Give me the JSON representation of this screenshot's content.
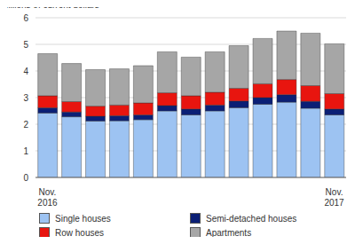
{
  "chart_data": {
    "type": "bar",
    "stacked": true,
    "grid": true,
    "legend": "bottom",
    "y_label": "billions of current dollars",
    "categories": [
      "Nov. 2016",
      null,
      null,
      null,
      null,
      null,
      null,
      null,
      null,
      null,
      null,
      null,
      "Nov. 2017"
    ],
    "ylim": [
      0,
      6
    ],
    "yticks": [
      0,
      1,
      2,
      3,
      4,
      5,
      6
    ],
    "series": [
      {
        "name": "Single houses",
        "color": "#9dc3f2",
        "values": [
          2.42,
          2.28,
          2.12,
          2.13,
          2.17,
          2.5,
          2.35,
          2.5,
          2.62,
          2.75,
          2.83,
          2.6,
          2.35
        ]
      },
      {
        "name": "Semi-detached houses",
        "color": "#0b1f75",
        "values": [
          0.2,
          0.18,
          0.18,
          0.19,
          0.18,
          0.2,
          0.22,
          0.22,
          0.25,
          0.25,
          0.28,
          0.26,
          0.22
        ]
      },
      {
        "name": "Row houses",
        "color": "#e8150f",
        "values": [
          0.45,
          0.39,
          0.38,
          0.4,
          0.45,
          0.48,
          0.5,
          0.48,
          0.48,
          0.52,
          0.57,
          0.59,
          0.58
        ]
      },
      {
        "name": "Apartments",
        "color": "#a6a6a6",
        "values": [
          1.58,
          1.43,
          1.37,
          1.36,
          1.4,
          1.54,
          1.45,
          1.52,
          1.6,
          1.7,
          1.82,
          1.97,
          1.87
        ]
      }
    ]
  }
}
